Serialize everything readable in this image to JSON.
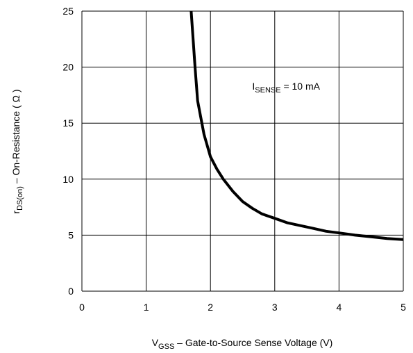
{
  "chart_data": {
    "type": "line",
    "title": "",
    "xlabel": {
      "main": "V",
      "sub": "GSS",
      "rest": " – Gate-to-Source Sense Voltage (V)"
    },
    "ylabel": {
      "main": "r",
      "sub": "DS(on)",
      "rest": "  –  On-Resistance ( Ω )"
    },
    "xlim": [
      0,
      5
    ],
    "ylim": [
      0,
      25
    ],
    "x_ticks": [
      "0",
      "1",
      "2",
      "3",
      "4",
      "5"
    ],
    "y_ticks": [
      "0",
      "5",
      "10",
      "15",
      "20",
      "25"
    ],
    "grid": true,
    "annotation": {
      "main": "I",
      "sub": "SENSE",
      "rest": " =  10 mA",
      "x": 2.65,
      "y": 18.0
    },
    "series": [
      {
        "name": "",
        "x": [
          1.7,
          1.73,
          1.76,
          1.8,
          1.85,
          1.9,
          2.0,
          2.1,
          2.2,
          2.35,
          2.5,
          2.65,
          2.8,
          3.0,
          3.2,
          3.4,
          3.6,
          3.8,
          4.0,
          4.25,
          4.5,
          4.75,
          5.0
        ],
        "y": [
          25.0,
          22.5,
          20.0,
          17.0,
          15.5,
          14.0,
          12.0,
          10.9,
          10.0,
          8.9,
          8.0,
          7.4,
          6.9,
          6.5,
          6.1,
          5.85,
          5.6,
          5.35,
          5.2,
          5.0,
          4.85,
          4.7,
          4.6
        ]
      }
    ]
  },
  "colors": {
    "line": "#000000",
    "grid": "#000000",
    "background": "#ffffff"
  }
}
